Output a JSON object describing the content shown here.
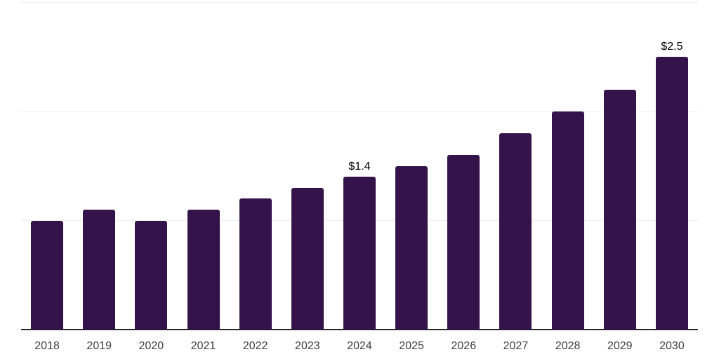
{
  "chart_data": {
    "type": "bar",
    "title": "",
    "xlabel": "",
    "ylabel": "",
    "categories": [
      "2018",
      "2019",
      "2020",
      "2021",
      "2022",
      "2023",
      "2024",
      "2025",
      "2026",
      "2027",
      "2028",
      "2029",
      "2030"
    ],
    "values": [
      1.0,
      1.1,
      1.0,
      1.1,
      1.2,
      1.3,
      1.4,
      1.5,
      1.6,
      1.8,
      2.0,
      2.2,
      2.5
    ],
    "data_labels": {
      "2024": "$1.4",
      "2030": "$2.5"
    },
    "ylim": [
      0,
      3
    ],
    "gridline_values": [
      1,
      2,
      3
    ],
    "grid": "horizontal",
    "legend_position": "none",
    "colors": {
      "bar": "#34124a",
      "axis_line": "#262626",
      "gridline": "#efefef",
      "tick_label": "#3f3f3f",
      "data_label": "#000000",
      "background": "#ffffff"
    }
  }
}
